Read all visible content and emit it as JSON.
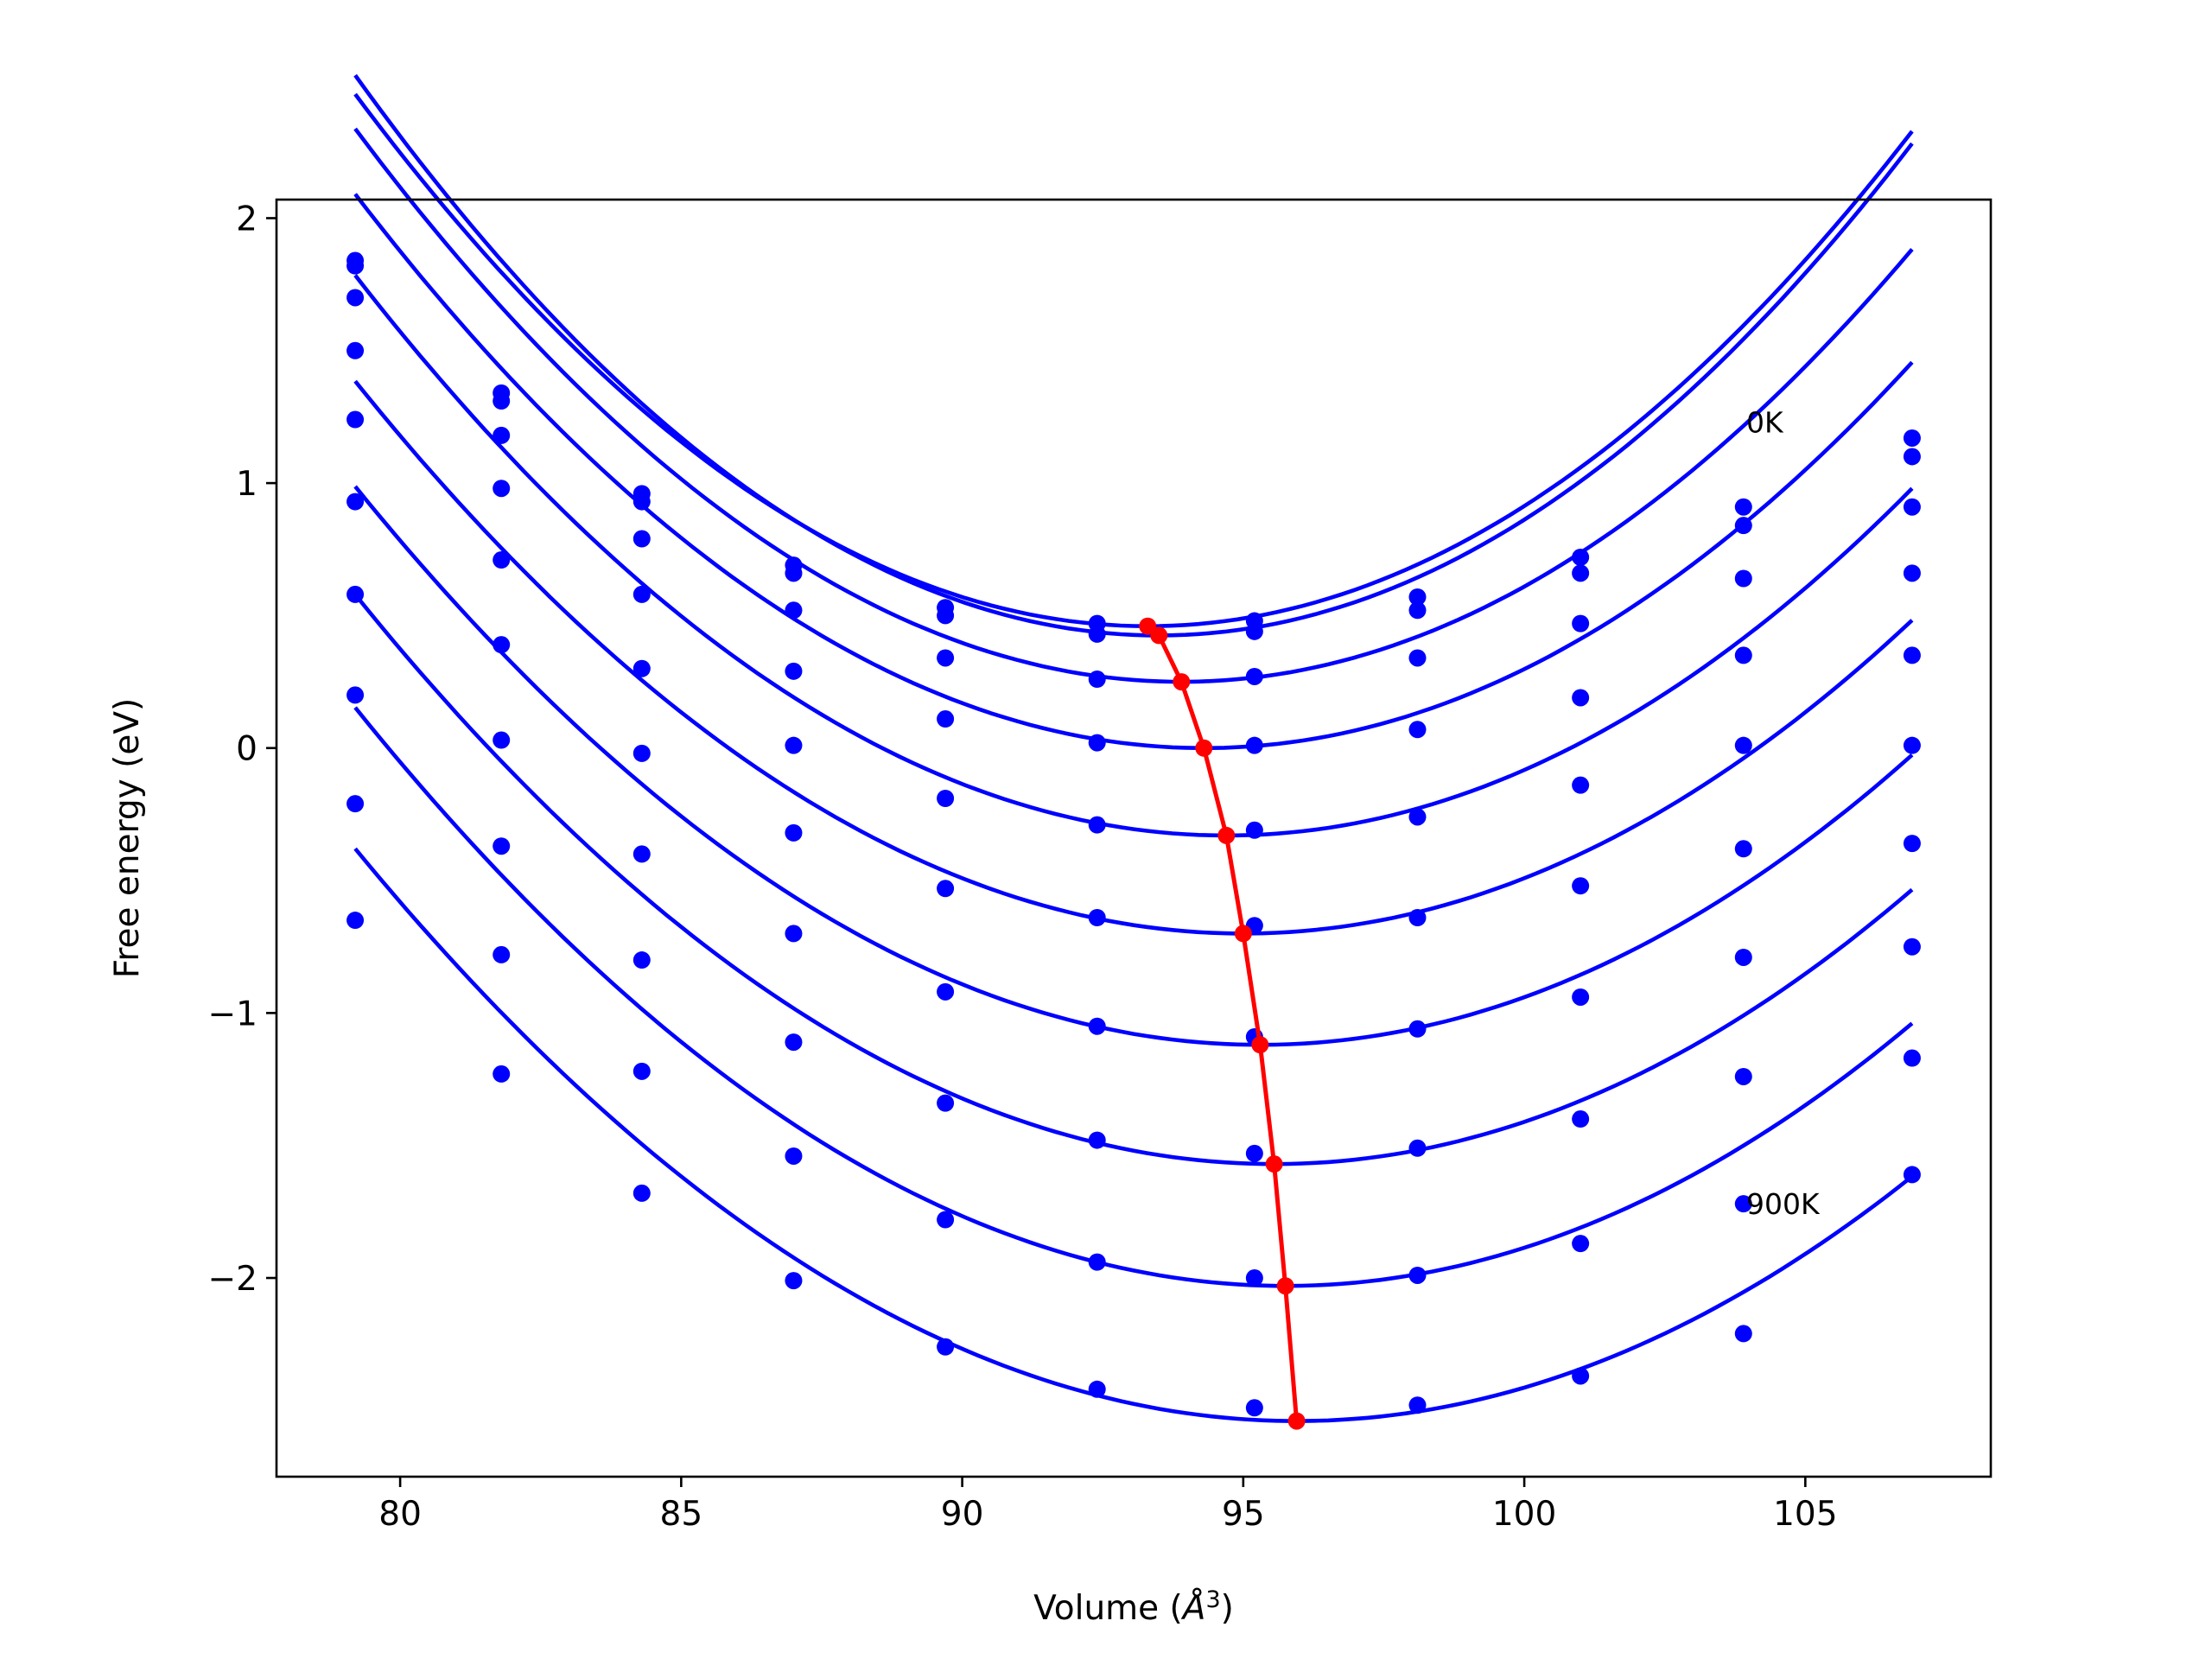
{
  "chart_data": {
    "type": "scatter",
    "title": "",
    "xlabel_main": "Volume (",
    "xlabel_unit": "Å",
    "xlabel_exp": "3",
    "xlabel_close": ")",
    "ylabel": "Free energy (eV)",
    "xlim": [
      77.8,
      108.3
    ],
    "ylim": [
      -2.75,
      2.07
    ],
    "xticks": [
      80,
      85,
      90,
      95,
      100,
      105
    ],
    "xtick_labels": [
      "80",
      "85",
      "90",
      "95",
      "100",
      "105"
    ],
    "yticks": [
      -2,
      -1,
      0,
      1,
      2
    ],
    "ytick_labels": [
      "−2",
      "−1",
      "0",
      "1",
      "2"
    ],
    "grid": false,
    "legend": "none",
    "annotations": [
      {
        "text": "0K",
        "x": 103.95,
        "y": 1.23
      },
      {
        "text": "900K",
        "x": 103.95,
        "y": -1.72
      }
    ],
    "volumes": [
      79.2,
      81.8,
      84.3,
      87.0,
      89.7,
      92.4,
      95.2,
      98.1,
      101.0,
      103.9,
      106.9
    ],
    "series": [
      {
        "values": [
          1.84,
          1.34,
          0.96,
          0.69,
          0.53,
          0.47,
          0.48,
          0.57,
          0.72,
          0.91,
          1.17
        ],
        "fit": {
          "v0": 93.3,
          "e0": 0.46,
          "k": 0.0101
        }
      },
      {
        "values": [
          1.82,
          1.31,
          0.93,
          0.66,
          0.5,
          0.43,
          0.44,
          0.52,
          0.66,
          0.84,
          1.1
        ],
        "fit": {
          "v0": 93.5,
          "e0": 0.425,
          "k": 0.01034
        }
      },
      {
        "values": [
          1.7,
          1.18,
          0.79,
          0.52,
          0.34,
          0.26,
          0.27,
          0.34,
          0.47,
          0.64,
          0.91
        ],
        "fit": {
          "v0": 93.9,
          "e0": 0.25,
          "k": 0.00966
        }
      },
      {
        "values": [
          1.5,
          0.98,
          0.58,
          0.29,
          0.11,
          0.02,
          0.01,
          0.07,
          0.19,
          0.35,
          0.66
        ],
        "fit": {
          "v0": 94.3,
          "e0": 0.0,
          "k": 0.00917
        }
      },
      {
        "values": [
          1.24,
          0.71,
          0.3,
          0.01,
          -0.19,
          -0.29,
          -0.31,
          -0.26,
          -0.14,
          0.01,
          0.35
        ],
        "fit": {
          "v0": 94.7,
          "e0": -0.33,
          "k": 0.0088
        }
      },
      {
        "values": [
          0.93,
          0.39,
          -0.02,
          -0.32,
          -0.53,
          -0.64,
          -0.67,
          -0.64,
          -0.52,
          -0.38,
          0.01
        ],
        "fit": {
          "v0": 95.0,
          "e0": -0.7,
          "k": 0.00835
        }
      },
      {
        "values": [
          0.58,
          0.03,
          -0.4,
          -0.7,
          -0.92,
          -1.05,
          -1.09,
          -1.06,
          -0.94,
          -0.79,
          -0.36
        ],
        "fit": {
          "v0": 95.3,
          "e0": -1.12,
          "k": 0.00813
        }
      },
      {
        "values": [
          0.2,
          -0.37,
          -0.8,
          -1.11,
          -1.34,
          -1.48,
          -1.53,
          -1.51,
          -1.4,
          -1.24,
          -0.75
        ],
        "fit": {
          "v0": 95.55,
          "e0": -1.57,
          "k": 0.00804
        }
      },
      {
        "values": [
          -0.21,
          -0.78,
          -1.22,
          -1.54,
          -1.78,
          -1.94,
          -2.0,
          -1.99,
          -1.87,
          -1.72,
          -1.17
        ],
        "fit": {
          "v0": 95.75,
          "e0": -2.03,
          "k": 0.00797
        }
      },
      {
        "values": [
          -0.65,
          -1.23,
          -1.68,
          -2.01,
          -2.26,
          -2.42,
          -2.49,
          -2.48,
          -2.37,
          -2.21,
          -1.61
        ],
        "fit": {
          "v0": 95.95,
          "e0": -2.54,
          "k": 0.0077
        }
      }
    ],
    "minima": {
      "x": [
        93.3,
        93.5,
        93.9,
        94.3,
        94.7,
        95.0,
        95.3,
        95.55,
        95.75,
        95.95
      ],
      "y": [
        0.46,
        0.425,
        0.25,
        0.0,
        -0.33,
        -0.7,
        -1.12,
        -1.57,
        -2.03,
        -2.54
      ]
    },
    "colors": {
      "points": "#0000ff",
      "fit": "#0000ff",
      "minima": "#ff0000",
      "axes": "#000000"
    }
  }
}
